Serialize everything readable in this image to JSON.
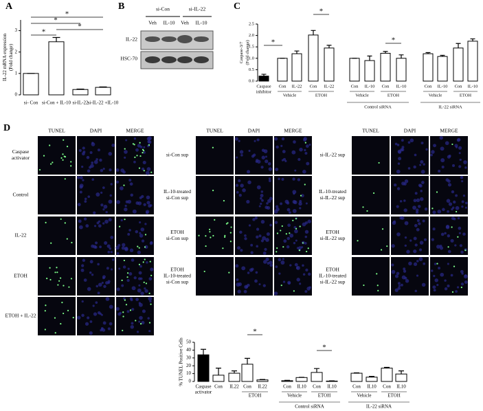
{
  "panel_labels": [
    "A",
    "B",
    "C",
    "D"
  ],
  "blot": {
    "groups": [
      "si-Con",
      "si-IL-22"
    ],
    "lanes": [
      "Veh",
      "IL-10",
      "Veh",
      "IL-10"
    ],
    "rows": [
      "IL-22",
      "HSC-70"
    ]
  },
  "micrographs": {
    "channels": [
      "TUNEL",
      "DAPI",
      "MERGE"
    ],
    "sets": [
      {
        "rows": [
          [
            "Caspase",
            "activator"
          ],
          [
            "Control"
          ],
          [
            "IL-22"
          ],
          [
            "ETOH"
          ],
          [
            "ETOH + IL-22"
          ]
        ]
      },
      {
        "rows": [
          [
            "si-Con sup"
          ],
          [
            "IL-10-treated",
            "si-Con sup"
          ],
          [
            "ETOH",
            "si-Con sup"
          ],
          [
            "ETOH",
            "IL-10-treated",
            "si-Con sup"
          ]
        ]
      },
      {
        "rows": [
          [
            "si-IL-22 sup"
          ],
          [
            "IL-10-treated",
            "si-IL-22 sup"
          ],
          [
            "ETOH",
            "si-IL-22 sup"
          ],
          [
            "ETOH",
            "IL-10-treated",
            "si-IL-22 sup"
          ]
        ]
      }
    ]
  },
  "chart_data": [
    {
      "type": "bar",
      "ylabel": [
        "IL-22 mRNA expression",
        "(Fold change)"
      ],
      "categories": [
        "si- Con",
        "si-Con + IL-10",
        "si-IL-22",
        "si-IL-22 +IL-10"
      ],
      "values": [
        1.0,
        2.48,
        0.25,
        0.35
      ],
      "errors": [
        0,
        0.2,
        0.02,
        0.02
      ],
      "colors": [
        "#ffffff",
        "#ffffff",
        "#ffffff",
        "#ffffff"
      ],
      "ylim": [
        0,
        3.5
      ],
      "yticks": [
        0,
        1,
        2,
        3
      ],
      "annotations": [
        "*",
        "*",
        "*",
        "*"
      ]
    },
    {
      "type": "bar",
      "ylabel": [
        "Caspase-3/7",
        "(Fold change)"
      ],
      "categories": [
        [
          "Caspase",
          "inhibitor"
        ],
        "Con",
        "IL-22",
        "Con",
        "IL-22",
        "Con",
        "IL-10",
        "Con",
        "IL-10",
        "Con",
        "IL-10",
        "Con",
        "IL-10"
      ],
      "values": [
        0.22,
        1.0,
        1.2,
        2.02,
        1.45,
        1.0,
        0.9,
        1.22,
        1.0,
        1.2,
        1.08,
        1.45,
        1.75
      ],
      "errors": [
        0.08,
        0,
        0.12,
        0.2,
        0.12,
        0,
        0.2,
        0.08,
        0.15,
        0.05,
        0.05,
        0.2,
        0.1
      ],
      "colors": [
        "#000000",
        "#ffffff",
        "#ffffff",
        "#ffffff",
        "#ffffff",
        "#ffffff",
        "#ffffff",
        "#ffffff",
        "#ffffff",
        "#ffffff",
        "#ffffff",
        "#ffffff",
        "#ffffff"
      ],
      "group_labels": [
        "Vehicle",
        "ETOH",
        "Vehicle",
        "ETOH",
        "Vehicle",
        "ETOH"
      ],
      "super_labels": [
        "Control siRNA",
        "IL-22 siRNA"
      ],
      "ylim": [
        0,
        2.5
      ],
      "yticks": [
        {
          "value": 0,
          "label": "0.0"
        },
        0.5,
        {
          "value": 1,
          "label": "1.0"
        },
        1.5,
        {
          "value": 2,
          "label": "2.0"
        },
        2.5
      ],
      "annotations": [
        "*",
        "*",
        "*"
      ]
    },
    {
      "type": "bar",
      "ylabel": [
        "% TUNEL Positive Cells"
      ],
      "categories": [
        [
          "Caspase",
          "activator"
        ],
        "Con",
        "IL22",
        "Con",
        "IL22",
        "Con",
        "IL10",
        "Con",
        "IL10",
        "Con",
        "IL10",
        "Con",
        "IL10"
      ],
      "values": [
        34,
        8,
        10.5,
        22,
        2,
        1,
        5,
        11.5,
        0.5,
        10.5,
        5.5,
        17,
        9.5
      ],
      "errors": [
        7,
        9,
        3,
        7.5,
        0.5,
        0.5,
        0.3,
        5,
        0.3,
        0.5,
        1,
        1,
        4
      ],
      "colors": [
        "#000000",
        "#ffffff",
        "#ffffff",
        "#ffffff",
        "#ffffff",
        "#ffffff",
        "#ffffff",
        "#ffffff",
        "#ffffff",
        "#ffffff",
        "#ffffff",
        "#ffffff",
        "#ffffff"
      ],
      "group_labels": [
        "ETOH",
        "Vehicle",
        "ETOH",
        "Vehicle",
        "ETOH"
      ],
      "super_labels": [
        "Control siRNA",
        "IL-22 siRNA"
      ],
      "ylim": [
        0,
        50
      ],
      "yticks": [
        0,
        10,
        20,
        30,
        40,
        50
      ],
      "annotations": [
        "*",
        "*"
      ]
    }
  ]
}
